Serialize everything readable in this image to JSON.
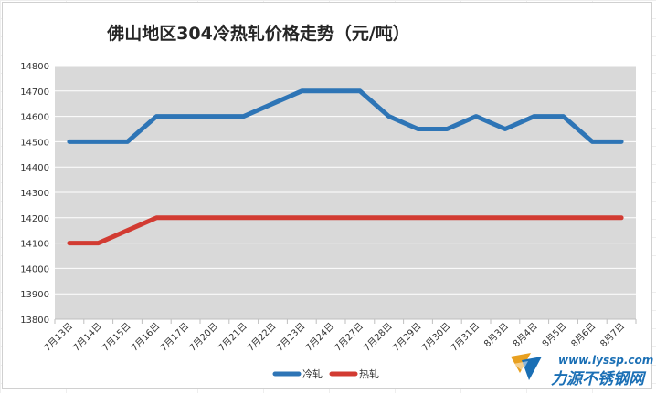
{
  "chart_data": {
    "type": "line",
    "title": "佛山地区304冷热轧价格走势（元/吨）",
    "categories": [
      "7月13日",
      "7月14日",
      "7月15日",
      "7月16日",
      "7月17日",
      "7月20日",
      "7月21日",
      "7月22日",
      "7月23日",
      "7月24日",
      "7月27日",
      "7月28日",
      "7月29日",
      "7月30日",
      "7月31日",
      "8月3日",
      "8月4日",
      "8月5日",
      "8月6日",
      "8月7日"
    ],
    "series": [
      {
        "name": "冷轧",
        "color": "#2e75b6",
        "values": [
          14500,
          14500,
          14500,
          14600,
          14600,
          14600,
          14600,
          14650,
          14700,
          14700,
          14700,
          14600,
          14550,
          14550,
          14600,
          14550,
          14600,
          14600,
          14500,
          14500
        ]
      },
      {
        "name": "热轧",
        "color": "#d23b32",
        "values": [
          14100,
          14100,
          14150,
          14200,
          14200,
          14200,
          14200,
          14200,
          14200,
          14200,
          14200,
          14200,
          14200,
          14200,
          14200,
          14200,
          14200,
          14200,
          14200,
          14200
        ]
      }
    ],
    "ylim": [
      13800,
      14800
    ],
    "yticks": [
      13800,
      13900,
      14000,
      14100,
      14200,
      14300,
      14400,
      14500,
      14600,
      14700,
      14800
    ],
    "grid": true,
    "plot_background": "#d9d9d9",
    "legend_position": "bottom-center"
  },
  "watermark": {
    "site": "www.lyssp.com",
    "name": "力源不锈钢网",
    "color": "#1a6fb5"
  }
}
